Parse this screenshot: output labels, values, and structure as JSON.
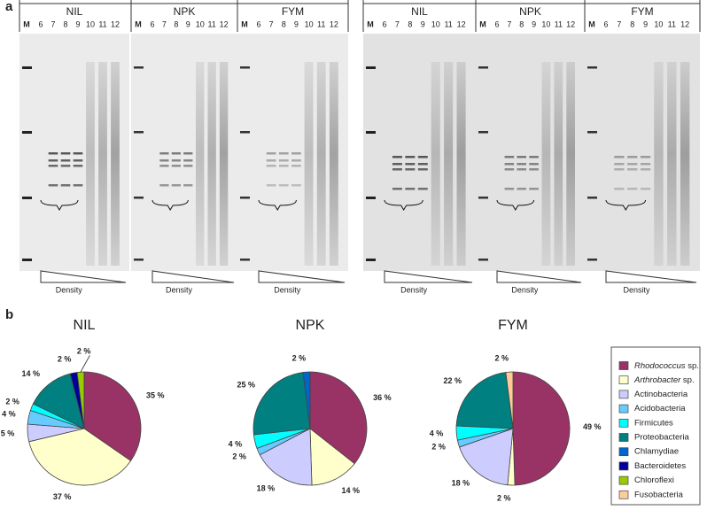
{
  "panel_a": {
    "label": "a",
    "gels": [
      {
        "groups": [
          {
            "name": "NIL",
            "lanes": [
              "M",
              "6",
              "7",
              "8",
              "9",
              "10",
              "11",
              "12"
            ],
            "gradient_label": "Density"
          },
          {
            "name": "NPK",
            "lanes": [
              "M",
              "6",
              "7",
              "8",
              "9",
              "10",
              "11",
              "12"
            ],
            "gradient_label": "Density"
          },
          {
            "name": "FYM",
            "lanes": [
              "M",
              "6",
              "7",
              "8",
              "9",
              "10",
              "11",
              "12"
            ],
            "gradient_label": "Density"
          }
        ]
      },
      {
        "groups": [
          {
            "name": "NIL",
            "lanes": [
              "M",
              "6",
              "7",
              "8",
              "9",
              "10",
              "11",
              "12"
            ],
            "gradient_label": "Density"
          },
          {
            "name": "NPK",
            "lanes": [
              "M",
              "6",
              "7",
              "8",
              "9",
              "10",
              "11",
              "12"
            ],
            "gradient_label": "Density"
          },
          {
            "name": "FYM",
            "lanes": [
              "M",
              "6",
              "7",
              "8",
              "9",
              "10",
              "11",
              "12"
            ],
            "gradient_label": "Density"
          }
        ]
      }
    ]
  },
  "panel_b_label": "b",
  "legend": {
    "entries": [
      "Rhodococcus sp.",
      "Arthrobacter sp.",
      "Actinobacteria",
      "Acidobacteria",
      "Firmicutes",
      "Proteobacteria",
      "Chlamydiae",
      "Bacteroidetes",
      "Chloroflexi",
      "Fusobacteria"
    ],
    "italic_words": [
      "Rhodococcus",
      "Arthrobacter"
    ],
    "colors": [
      "#993366",
      "#ffffcc",
      "#ccccff",
      "#66ccff",
      "#00ffff",
      "#008080",
      "#0066cc",
      "#000099",
      "#99cc00",
      "#ffcc99"
    ]
  },
  "chart_data": [
    {
      "type": "pie",
      "title": "NIL",
      "values": [
        35,
        37,
        5,
        4,
        2,
        14,
        0,
        2,
        2,
        0
      ],
      "value_labels": [
        "35 %",
        "37 %",
        "5 %",
        "4 %",
        "2 %",
        "14 %",
        null,
        "2 %",
        "2 %",
        null
      ]
    },
    {
      "type": "pie",
      "title": "NPK",
      "values": [
        36,
        14,
        18,
        2,
        4,
        25,
        2,
        0,
        0,
        0
      ],
      "value_labels": [
        "36 %",
        "14 %",
        "18 %",
        "2 %",
        "4 %",
        "25 %",
        "2 %",
        null,
        null,
        null
      ]
    },
    {
      "type": "pie",
      "title": "FYM",
      "values": [
        49,
        2,
        18,
        2,
        4,
        22,
        0,
        0,
        0,
        2
      ],
      "value_labels": [
        "49 %",
        "2 %",
        "18 %",
        "2 %",
        "4 %",
        "22 %",
        null,
        null,
        null,
        "2 %"
      ]
    }
  ]
}
